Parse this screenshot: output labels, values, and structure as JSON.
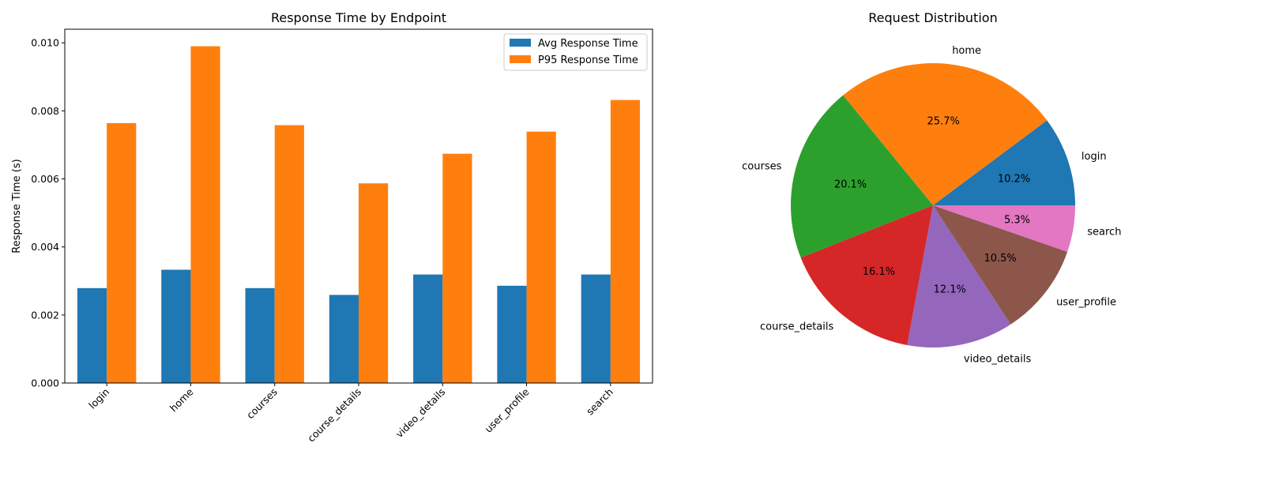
{
  "chart_data": [
    {
      "type": "bar",
      "title": "Response Time by Endpoint",
      "xlabel": "",
      "ylabel": "Response Time (s)",
      "ylim": [
        0,
        0.0104
      ],
      "yticks": [
        "0.000",
        "0.002",
        "0.004",
        "0.006",
        "0.008",
        "0.010"
      ],
      "categories": [
        "login",
        "home",
        "courses",
        "course_details",
        "video_details",
        "user_profile",
        "search"
      ],
      "series": [
        {
          "name": "Avg Response Time",
          "color": "#1f77b4",
          "values": [
            0.00279,
            0.00333,
            0.00279,
            0.00259,
            0.00319,
            0.00286,
            0.00319
          ]
        },
        {
          "name": "P95 Response Time",
          "color": "#ff7f0e",
          "values": [
            0.00764,
            0.0099,
            0.00758,
            0.00587,
            0.00674,
            0.00739,
            0.00832
          ]
        }
      ],
      "legend": "top-right",
      "grid": false
    },
    {
      "type": "pie",
      "title": "Request Distribution",
      "labels": [
        "login",
        "home",
        "courses",
        "course_details",
        "video_details",
        "user_profile",
        "search"
      ],
      "values": [
        10.2,
        25.7,
        20.1,
        16.1,
        12.1,
        10.5,
        5.3
      ],
      "pct_labels": [
        "10.2%",
        "25.7%",
        "20.1%",
        "16.1%",
        "12.1%",
        "10.5%",
        "5.3%"
      ],
      "colors": [
        "#1f77b4",
        "#ff7f0e",
        "#2ca02c",
        "#d62728",
        "#9467bd",
        "#8c564b",
        "#e377c2"
      ]
    }
  ]
}
